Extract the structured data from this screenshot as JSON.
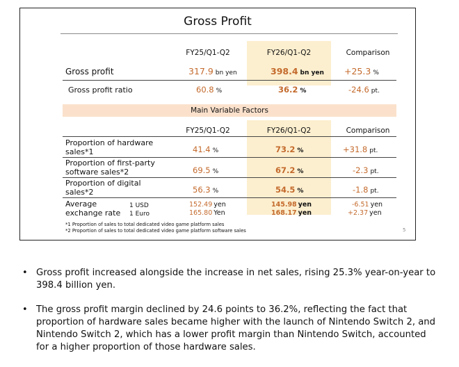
{
  "slide": {
    "title": "Gross Profit",
    "page_number": "5",
    "columns": [
      "FY25/Q1-Q2",
      "FY26/Q1-Q2",
      "Comparison"
    ],
    "gross_profit": {
      "label": "Gross profit",
      "prev": "317.9",
      "prev_unit": "bn yen",
      "curr": "398.4",
      "curr_unit": "bn yen",
      "diff": "+25.3",
      "diff_unit": "%"
    },
    "gross_profit_ratio": {
      "label": "Gross profit ratio",
      "prev": "60.8",
      "prev_unit": "%",
      "curr": "36.2",
      "curr_unit": "%",
      "diff": "-24.6",
      "diff_unit": "pt."
    },
    "factors_title": "Main Variable Factors",
    "factors": [
      {
        "label_line1": "Proportion of hardware",
        "label_line2": "sales*1",
        "prev": "41.4",
        "prev_unit": "%",
        "curr": "73.2",
        "curr_unit": "%",
        "diff": "+31.8",
        "diff_unit": "pt."
      },
      {
        "label_line1": "Proportion of first-party",
        "label_line2": "software sales*2",
        "prev": "69.5",
        "prev_unit": "%",
        "curr": "67.2",
        "curr_unit": "%",
        "diff": "-2.3",
        "diff_unit": "pt."
      },
      {
        "label_line1": "Proportion of digital",
        "label_line2": "sales*2",
        "prev": "56.3",
        "prev_unit": "%",
        "curr": "54.5",
        "curr_unit": "%",
        "diff": "-1.8",
        "diff_unit": "pt."
      }
    ],
    "exchange": {
      "label_line1": "Average",
      "label_line2": "exchange rate",
      "usd_label": "1 USD",
      "euro_label": "1 Euro",
      "usd_prev": "152.49",
      "usd_prev_unit": "yen",
      "euro_prev": "165.80",
      "euro_prev_unit": "Yen",
      "usd_curr": "145.98",
      "usd_curr_unit": "yen",
      "euro_curr": "168.17",
      "euro_curr_unit": "yen",
      "usd_diff": "-6.51",
      "usd_diff_unit": "yen",
      "euro_diff": "+2.37",
      "euro_diff_unit": "yen"
    },
    "footnotes": [
      "*1 Proportion of sales to total dedicated video game platform sales",
      "*2 Proportion of sales to total dedicated video game platform software sales"
    ]
  },
  "bullets": [
    "Gross profit increased alongside the increase in net sales, rising 25.3% year-on-year to 398.4 billion yen.",
    "The gross profit margin declined by 24.6 points to 36.2%, reflecting the fact that proportion of hardware sales became higher with the launch of Nintendo Switch 2, and Nintendo Switch 2, which has a lower profit margin than Nintendo Switch, accounted for a higher proportion of those hardware sales."
  ],
  "colors": {
    "accent_orange": "#c46a2c",
    "highlight": "#fcefcf",
    "band": "#fbe1cc"
  }
}
